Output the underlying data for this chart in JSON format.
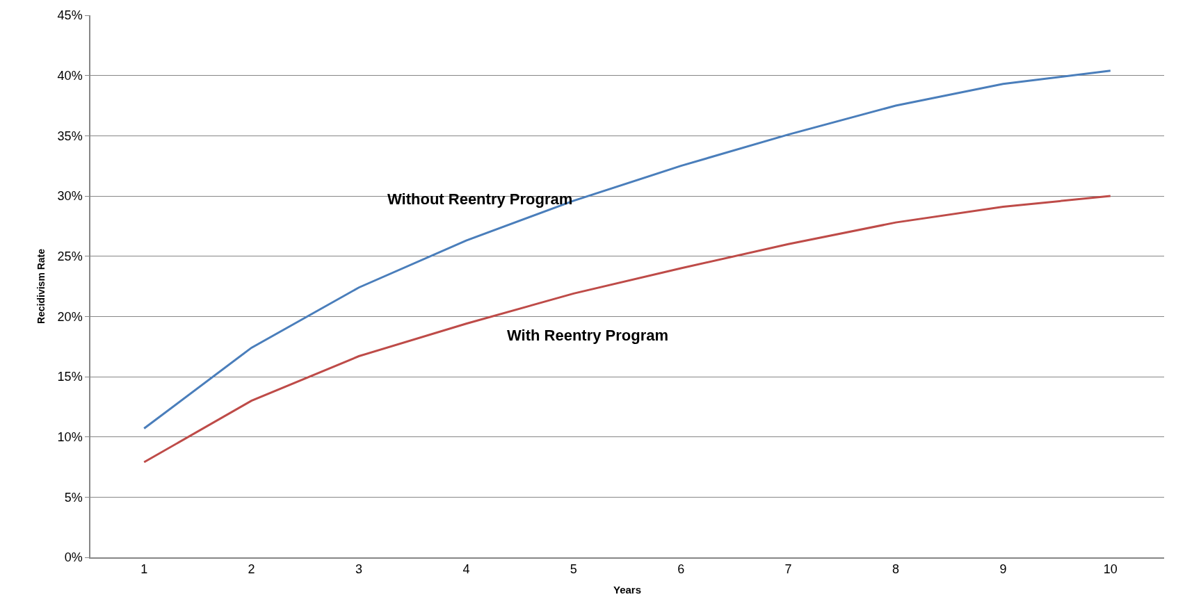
{
  "chart_data": {
    "type": "line",
    "xlabel": "Years",
    "ylabel": "Recidivism Rate",
    "categories": [
      "1",
      "2",
      "3",
      "4",
      "5",
      "6",
      "7",
      "8",
      "9",
      "10"
    ],
    "series": [
      {
        "name": "Without Reentry Program",
        "color": "#4a7ebb",
        "values": [
          10.7,
          17.4,
          22.4,
          26.3,
          29.6,
          32.5,
          35.1,
          37.5,
          39.3,
          40.4
        ]
      },
      {
        "name": "With Reentry Program",
        "color": "#be4b48",
        "values": [
          7.9,
          13.0,
          16.7,
          19.4,
          21.9,
          24.0,
          26.0,
          27.8,
          29.1,
          30.0
        ]
      }
    ],
    "ylim": [
      0,
      45
    ],
    "yticks": [
      {
        "value": 0,
        "label": "0%"
      },
      {
        "value": 5,
        "label": "5%"
      },
      {
        "value": 10,
        "label": "10%"
      },
      {
        "value": 15,
        "label": "15%"
      },
      {
        "value": 20,
        "label": "20%"
      },
      {
        "value": 25,
        "label": "25%"
      },
      {
        "value": 30,
        "label": "30%"
      },
      {
        "value": 35,
        "label": "35%"
      },
      {
        "value": 40,
        "label": "40%"
      },
      {
        "value": 45,
        "label": "45%"
      }
    ],
    "grid": "y",
    "legend": false,
    "marker": "none",
    "line_style": "solid"
  }
}
